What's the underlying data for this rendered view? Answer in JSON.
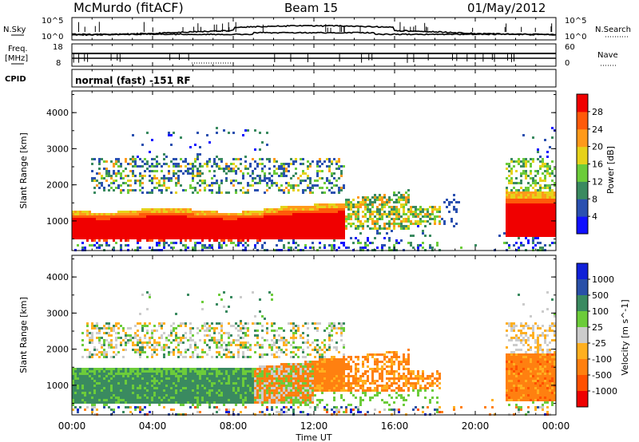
{
  "header": {
    "radar": "McMurdo (fitACF)",
    "beam": "Beam 15",
    "date": "01/May/2012"
  },
  "meta_panel": {
    "nsky_label": "N.Sky",
    "nsearch_label": "N.Search",
    "noise_ticks_left": [
      "10^5",
      "10^0"
    ],
    "noise_ticks_right": [
      "10^5",
      "10^0"
    ],
    "freq_label_1": "Freq.",
    "freq_label_2": "[MHz]",
    "freq_ticks": [
      "18",
      "8"
    ],
    "nave_label": "Nave",
    "nave_ticks": [
      "60",
      "0"
    ],
    "cpid_label": "CPID",
    "cpid_text": "normal (fast) -151 RF"
  },
  "colors": {
    "power": [
      "#1010ff",
      "#2a50b0",
      "#3a8a60",
      "#6ccc3a",
      "#e6d21a",
      "#ff9a1a",
      "#ff5a0a",
      "#f00000"
    ],
    "velocity": [
      "#1020d8",
      "#2a50a8",
      "#3a8a60",
      "#6ccc3a",
      "#cccccc",
      "#ffb020",
      "#ff8010",
      "#ff5000",
      "#ee0000"
    ]
  },
  "chart_data": [
    {
      "type": "heatmap",
      "title": "Power",
      "ylabel": "Slant Range [km]",
      "ylim": [
        180,
        4600
      ],
      "xlim_hours": [
        0,
        24
      ],
      "y_ticks": [
        "1000",
        "2000",
        "3000",
        "4000"
      ],
      "colorbar_label": "Power [dB]",
      "colorbar_ticks": [
        "4",
        "8",
        "12",
        "16",
        "20",
        "24",
        "28"
      ],
      "colorbar_range": [
        0,
        32
      ],
      "regions": [
        {
          "x": [
            0,
            9.5
          ],
          "y": [
            400,
            1350
          ],
          "value": 29
        },
        {
          "x": [
            9.5,
            13.5
          ],
          "y": [
            500,
            1500
          ],
          "value": 27
        },
        {
          "x": [
            13.5,
            16.5
          ],
          "y": [
            800,
            1900
          ],
          "value": 18
        },
        {
          "x": [
            21.7,
            24
          ],
          "y": [
            600,
            1900
          ],
          "value": 27
        },
        {
          "x": [
            1.0,
            13.5
          ],
          "y": [
            1800,
            2700
          ],
          "value": 10
        }
      ]
    },
    {
      "type": "heatmap",
      "title": "Velocity",
      "ylabel": "Slant Range [km]",
      "ylim": [
        180,
        4600
      ],
      "xlim_hours": [
        0,
        24
      ],
      "y_ticks": [
        "1000",
        "2000",
        "3000",
        "4000"
      ],
      "colorbar_label": "Velocity [m s^-1]",
      "colorbar_ticks": [
        "1000",
        "500",
        "100",
        "25",
        "-25",
        "-100",
        "-500",
        "-1000"
      ],
      "regions": [
        {
          "x": [
            0,
            9.0
          ],
          "y": [
            450,
            1500
          ],
          "value": 300
        },
        {
          "x": [
            9.0,
            12.0
          ],
          "y": [
            500,
            1700
          ],
          "value": -150
        },
        {
          "x": [
            12.0,
            17.5
          ],
          "y": [
            800,
            2000
          ],
          "value": -200
        },
        {
          "x": [
            21.5,
            24
          ],
          "y": [
            600,
            1900
          ],
          "value": -200
        }
      ]
    }
  ],
  "x_axis": {
    "label": "Time UT",
    "ticks": [
      "00:00",
      "04:00",
      "08:00",
      "12:00",
      "16:00",
      "20:00",
      "00:00"
    ]
  }
}
